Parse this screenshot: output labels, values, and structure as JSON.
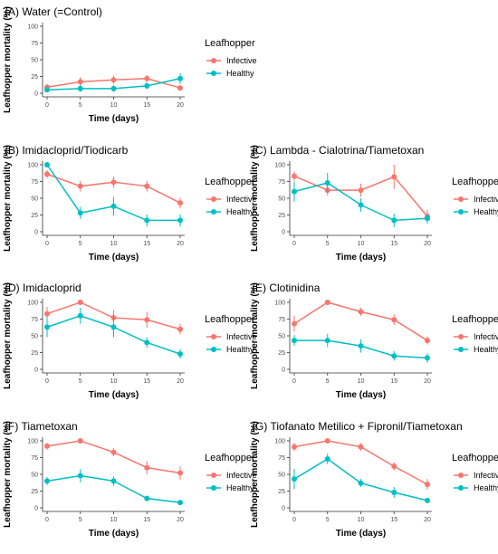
{
  "colors": {
    "Infective": "#F8766D",
    "Healthy": "#00BFC4",
    "axis": "#333333",
    "tick_text": "#4d4d4d"
  },
  "chart_data": [
    {
      "type": "line",
      "title": "(A) Water (=Control)",
      "xlabel": "Time (days)",
      "ylabel": "Leafhopper mortality (%)",
      "x": [
        0,
        5,
        10,
        15,
        20
      ],
      "x_ticks": [
        "0",
        "5",
        "10",
        "15",
        "20"
      ],
      "y_ticks": [
        "0",
        "25",
        "50",
        "75",
        "100"
      ],
      "ylim": [
        0,
        100
      ],
      "legend": {
        "title": "Leafhopper",
        "entries": [
          "Infective",
          "Healthy"
        ],
        "position": "right"
      },
      "series": [
        {
          "name": "Infective",
          "values": [
            9,
            17,
            20,
            22,
            8
          ],
          "err": [
            5,
            7,
            6,
            5,
            3
          ]
        },
        {
          "name": "Healthy",
          "values": [
            5,
            7,
            7,
            11,
            22
          ],
          "err": [
            3,
            5,
            5,
            5,
            8
          ]
        }
      ]
    },
    {
      "type": "line",
      "title": "(B) Imidacloprid/Tiodicarb",
      "xlabel": "Time (days)",
      "ylabel": "Leafhopper mortality (%)",
      "x": [
        0,
        5,
        10,
        15,
        20
      ],
      "x_ticks": [
        "0",
        "5",
        "10",
        "15",
        "20"
      ],
      "y_ticks": [
        "0",
        "25",
        "50",
        "75",
        "100"
      ],
      "ylim": [
        0,
        100
      ],
      "legend": {
        "title": "Leafhopper",
        "entries": [
          "Infective",
          "Healthy"
        ],
        "position": "right"
      },
      "series": [
        {
          "name": "Infective",
          "values": [
            86,
            68,
            74,
            68,
            43
          ],
          "err": [
            6,
            8,
            8,
            8,
            8
          ]
        },
        {
          "name": "Healthy",
          "values": [
            100,
            28,
            38,
            17,
            17
          ],
          "err": [
            0,
            9,
            14,
            9,
            9
          ]
        }
      ]
    },
    {
      "type": "line",
      "title": "(C) Lambda - Cialotrina/Tiametoxan",
      "xlabel": "Time (days)",
      "ylabel": "Leafhopper mortality (%)",
      "x": [
        0,
        5,
        10,
        15,
        20
      ],
      "x_ticks": [
        "0",
        "5",
        "10",
        "15",
        "20"
      ],
      "y_ticks": [
        "0",
        "25",
        "50",
        "75",
        "100"
      ],
      "ylim": [
        0,
        100
      ],
      "legend": {
        "title": "Leafhopper",
        "entries": [
          "Infective",
          "Healthy"
        ],
        "position": "right"
      },
      "series": [
        {
          "name": "Infective",
          "values": [
            83,
            62,
            62,
            82,
            23
          ],
          "err": [
            7,
            8,
            10,
            18,
            10
          ]
        },
        {
          "name": "Healthy",
          "values": [
            60,
            73,
            40,
            17,
            20
          ],
          "err": [
            15,
            15,
            10,
            10,
            8
          ]
        }
      ]
    },
    {
      "type": "line",
      "title": "(D) Imidacloprid",
      "xlabel": "Time (days)",
      "ylabel": "Leafhopper mortality (%)",
      "x": [
        0,
        5,
        10,
        15,
        20
      ],
      "x_ticks": [
        "0",
        "5",
        "10",
        "15",
        "20"
      ],
      "y_ticks": [
        "0",
        "25",
        "50",
        "75",
        "100"
      ],
      "ylim": [
        0,
        100
      ],
      "legend": {
        "title": "Leafhopper",
        "entries": [
          "Infective",
          "Healthy"
        ],
        "position": "right"
      },
      "series": [
        {
          "name": "Infective",
          "values": [
            83,
            100,
            77,
            74,
            60
          ],
          "err": [
            10,
            0,
            12,
            12,
            8
          ]
        },
        {
          "name": "Healthy",
          "values": [
            63,
            80,
            63,
            40,
            23
          ],
          "err": [
            15,
            12,
            15,
            8,
            7
          ]
        }
      ]
    },
    {
      "type": "line",
      "title": "(E) Clotinidina",
      "xlabel": "Time (days)",
      "ylabel": "Leafhopper mortality (%)",
      "x": [
        0,
        5,
        10,
        15,
        20
      ],
      "x_ticks": [
        "0",
        "5",
        "10",
        "15",
        "20"
      ],
      "y_ticks": [
        "0",
        "25",
        "50",
        "75",
        "100"
      ],
      "ylim": [
        0,
        100
      ],
      "legend": {
        "title": "Leafhopper",
        "entries": [
          "Infective",
          "Healthy"
        ],
        "position": "right"
      },
      "series": [
        {
          "name": "Infective",
          "values": [
            68,
            100,
            86,
            74,
            43
          ],
          "err": [
            12,
            0,
            6,
            8,
            6
          ]
        },
        {
          "name": "Healthy",
          "values": [
            43,
            43,
            35,
            20,
            17
          ],
          "err": [
            8,
            10,
            10,
            7,
            7
          ]
        }
      ]
    },
    {
      "type": "line",
      "title": "(F) Tiametoxan",
      "xlabel": "Time (days)",
      "ylabel": "Leafhopper mortality (%)",
      "x": [
        0,
        5,
        10,
        15,
        20
      ],
      "x_ticks": [
        "0",
        "5",
        "10",
        "15",
        "20"
      ],
      "y_ticks": [
        "0",
        "25",
        "50",
        "75",
        "100"
      ],
      "ylim": [
        0,
        100
      ],
      "legend": {
        "title": "Leafhopper",
        "entries": [
          "Infective",
          "Healthy"
        ],
        "position": "right"
      },
      "series": [
        {
          "name": "Infective",
          "values": [
            92,
            100,
            83,
            60,
            52
          ],
          "err": [
            5,
            0,
            6,
            10,
            10
          ]
        },
        {
          "name": "Healthy",
          "values": [
            40,
            48,
            40,
            14,
            8
          ],
          "err": [
            6,
            10,
            7,
            4,
            3
          ]
        }
      ]
    },
    {
      "type": "line",
      "title": "(G) Tiofanato Metilico + Fipronil/Tiametoxan",
      "xlabel": "Time (days)",
      "ylabel": "Leafhopper mortality (%)",
      "x": [
        0,
        5,
        10,
        15,
        20
      ],
      "x_ticks": [
        "0",
        "5",
        "10",
        "15",
        "20"
      ],
      "y_ticks": [
        "0",
        "25",
        "50",
        "75",
        "100"
      ],
      "ylim": [
        0,
        100
      ],
      "legend": {
        "title": "Leafhopper",
        "entries": [
          "Infective",
          "Healthy"
        ],
        "position": "right"
      },
      "series": [
        {
          "name": "Infective",
          "values": [
            91,
            100,
            91,
            62,
            35
          ],
          "err": [
            6,
            0,
            6,
            6,
            8
          ]
        },
        {
          "name": "Healthy",
          "values": [
            43,
            73,
            37,
            23,
            11
          ],
          "err": [
            15,
            8,
            6,
            8,
            3
          ]
        }
      ]
    }
  ]
}
